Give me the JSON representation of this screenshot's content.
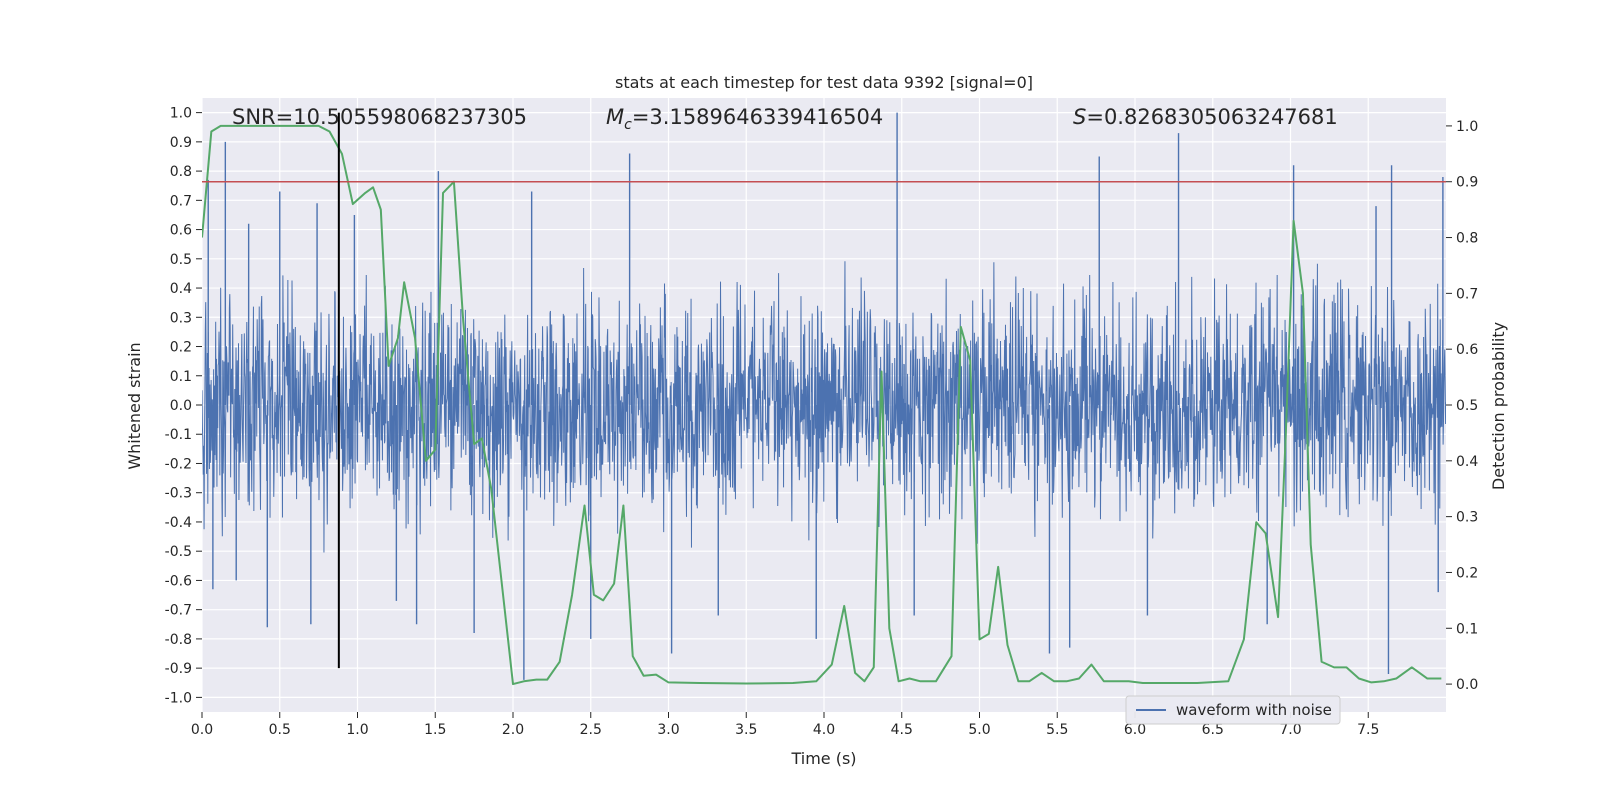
{
  "chart_data": {
    "type": "line",
    "title": "stats at each timestep for test data 9392 [signal=0]",
    "xlabel": "Time (s)",
    "ylabel_left": "Whitened strain",
    "ylabel_right": "Detection probability",
    "xlim": [
      0,
      8
    ],
    "ylim_left": [
      -1.05,
      1.05
    ],
    "ylim_right": [
      -0.05,
      1.05
    ],
    "x_ticks": [
      "0.0",
      "0.5",
      "1.0",
      "1.5",
      "2.0",
      "2.5",
      "3.0",
      "3.5",
      "4.0",
      "4.5",
      "5.0",
      "5.5",
      "6.0",
      "6.5",
      "7.0",
      "7.5"
    ],
    "x_tick_values": [
      0,
      0.5,
      1,
      1.5,
      2,
      2.5,
      3,
      3.5,
      4,
      4.5,
      5,
      5.5,
      6,
      6.5,
      7,
      7.5
    ],
    "y_ticks_left": [
      "1.0",
      "0.9",
      "0.8",
      "0.7",
      "0.6",
      "0.5",
      "0.4",
      "0.3",
      "0.2",
      "0.1",
      "0.0",
      "-0.1",
      "-0.2",
      "-0.3",
      "-0.4",
      "-0.5",
      "-0.6",
      "-0.7",
      "-0.8",
      "-0.9",
      "-1.0"
    ],
    "y_tick_values_left": [
      1.0,
      0.9,
      0.8,
      0.7,
      0.6,
      0.5,
      0.4,
      0.3,
      0.2,
      0.1,
      0.0,
      -0.1,
      -0.2,
      -0.3,
      -0.4,
      -0.5,
      -0.6,
      -0.7,
      -0.8,
      -0.9,
      -1.0
    ],
    "y_ticks_right": [
      "1.0",
      "0.9",
      "0.8",
      "0.7",
      "0.6",
      "0.5",
      "0.4",
      "0.3",
      "0.2",
      "0.1",
      "0.0"
    ],
    "y_tick_values_right": [
      1.0,
      0.9,
      0.8,
      0.7,
      0.6,
      0.5,
      0.4,
      0.3,
      0.2,
      0.1,
      0.0
    ],
    "grid": true,
    "legend_placement": "lower-right",
    "annotations": {
      "snr": "SNR=10.505598068237305",
      "mc_symbol": "M",
      "mc_sub": "c",
      "mc_value": "=3.1589646339416504",
      "s_symbol": "S",
      "s_value": "=0.8268305063247681"
    },
    "series": [
      {
        "name": "waveform with noise",
        "axis": "left",
        "color": "#4c72b0",
        "kind": "dense-noise",
        "typical_amplitude": 0.42,
        "peaks": [
          [
            0.04,
            0.77
          ],
          [
            0.15,
            0.9
          ],
          [
            0.3,
            0.62
          ],
          [
            0.5,
            0.73
          ],
          [
            0.74,
            0.69
          ],
          [
            0.98,
            0.65
          ],
          [
            1.52,
            0.8
          ],
          [
            2.12,
            0.73
          ],
          [
            2.75,
            0.86
          ],
          [
            4.47,
            1.0
          ],
          [
            5.77,
            0.85
          ],
          [
            6.28,
            0.93
          ],
          [
            7.02,
            0.82
          ],
          [
            7.55,
            0.68
          ],
          [
            7.65,
            0.82
          ],
          [
            7.98,
            0.78
          ],
          [
            0.07,
            -0.63
          ],
          [
            0.22,
            -0.6
          ],
          [
            0.42,
            -0.76
          ],
          [
            0.7,
            -0.75
          ],
          [
            1.25,
            -0.67
          ],
          [
            1.38,
            -0.75
          ],
          [
            1.75,
            -0.78
          ],
          [
            2.07,
            -0.94
          ],
          [
            2.5,
            -0.8
          ],
          [
            3.02,
            -0.85
          ],
          [
            3.32,
            -0.72
          ],
          [
            3.95,
            -0.8
          ],
          [
            4.58,
            -0.72
          ],
          [
            5.45,
            -0.85
          ],
          [
            5.58,
            -0.83
          ],
          [
            6.08,
            -0.72
          ],
          [
            6.85,
            -0.75
          ],
          [
            7.63,
            -0.92
          ],
          [
            7.95,
            -0.64
          ]
        ]
      },
      {
        "name": "",
        "axis": "right",
        "color": "#55a868",
        "x": [
          0.0,
          0.06,
          0.12,
          0.25,
          0.5,
          0.75,
          0.82,
          0.9,
          0.97,
          1.05,
          1.1,
          1.15,
          1.2,
          1.26,
          1.3,
          1.37,
          1.44,
          1.5,
          1.55,
          1.62,
          1.68,
          1.75,
          1.8,
          1.86,
          1.92,
          2.0,
          2.07,
          2.15,
          2.22,
          2.3,
          2.38,
          2.46,
          2.52,
          2.58,
          2.65,
          2.71,
          2.77,
          2.84,
          2.92,
          3.0,
          3.2,
          3.5,
          3.8,
          3.95,
          4.05,
          4.13,
          4.2,
          4.26,
          4.32,
          4.37,
          4.42,
          4.48,
          4.55,
          4.62,
          4.72,
          4.82,
          4.88,
          4.94,
          5.0,
          5.06,
          5.12,
          5.18,
          5.25,
          5.32,
          5.4,
          5.48,
          5.56,
          5.64,
          5.72,
          5.8,
          5.88,
          5.96,
          6.05,
          6.2,
          6.4,
          6.6,
          6.7,
          6.78,
          6.84,
          6.92,
          6.97,
          7.02,
          7.08,
          7.13,
          7.2,
          7.28,
          7.36,
          7.44,
          7.52,
          7.6,
          7.68,
          7.78,
          7.88,
          7.97
        ],
        "y": [
          0.8,
          0.99,
          1.0,
          1.0,
          1.0,
          1.0,
          0.99,
          0.95,
          0.86,
          0.88,
          0.89,
          0.85,
          0.57,
          0.62,
          0.72,
          0.62,
          0.4,
          0.42,
          0.88,
          0.9,
          0.65,
          0.43,
          0.44,
          0.35,
          0.2,
          0.0,
          0.005,
          0.008,
          0.008,
          0.04,
          0.16,
          0.32,
          0.16,
          0.15,
          0.18,
          0.32,
          0.05,
          0.015,
          0.017,
          0.003,
          0.002,
          0.001,
          0.002,
          0.005,
          0.035,
          0.14,
          0.02,
          0.005,
          0.03,
          0.56,
          0.1,
          0.005,
          0.01,
          0.005,
          0.005,
          0.05,
          0.64,
          0.58,
          0.08,
          0.09,
          0.21,
          0.07,
          0.005,
          0.005,
          0.02,
          0.005,
          0.005,
          0.01,
          0.035,
          0.005,
          0.005,
          0.005,
          0.002,
          0.002,
          0.002,
          0.005,
          0.08,
          0.29,
          0.27,
          0.12,
          0.45,
          0.83,
          0.7,
          0.25,
          0.04,
          0.03,
          0.03,
          0.01,
          0.003,
          0.005,
          0.01,
          0.03,
          0.01,
          0.01
        ],
        "threshold": 0.9,
        "threshold_color": "#c44e52"
      }
    ],
    "marker_time": 0.88
  }
}
